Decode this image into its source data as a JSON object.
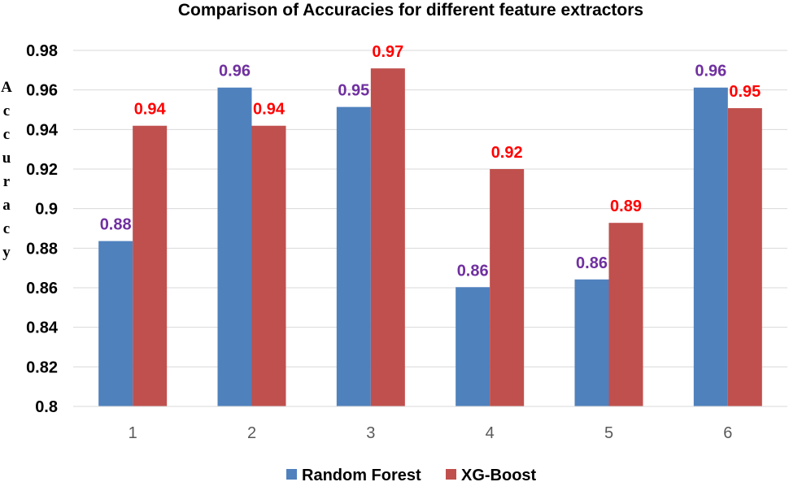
{
  "chart_data": {
    "type": "bar",
    "title": "Comparison of Accuracies for different feature extractors",
    "xlabel": "",
    "ylabel": "Accuracy",
    "categories": [
      "1",
      "2",
      "3",
      "4",
      "5",
      "6"
    ],
    "ylim": [
      0.8,
      0.98
    ],
    "yticks": [
      "0.8",
      "0.82",
      "0.84",
      "0.86",
      "0.88",
      "0.9",
      "0.92",
      "0.94",
      "0.96",
      "0.98"
    ],
    "grid": true,
    "legend_position": "bottom",
    "series": [
      {
        "name": "Random Forest",
        "color": "#4f81bd",
        "label_color": "#7030a0",
        "values": [
          0.8836,
          0.9612,
          0.9514,
          0.8603,
          0.8642,
          0.9612
        ],
        "labels": [
          "0.88",
          "0.96",
          "0.95",
          "0.86",
          "0.86",
          "0.96"
        ]
      },
      {
        "name": "XG-Boost",
        "color": "#c0504d",
        "label_color": "#ff0000",
        "values": [
          0.9419,
          0.9419,
          0.9709,
          0.92,
          0.8928,
          0.9508
        ],
        "labels": [
          "0.94",
          "0.94",
          "0.97",
          "0.92",
          "0.89",
          "0.95"
        ]
      }
    ]
  }
}
